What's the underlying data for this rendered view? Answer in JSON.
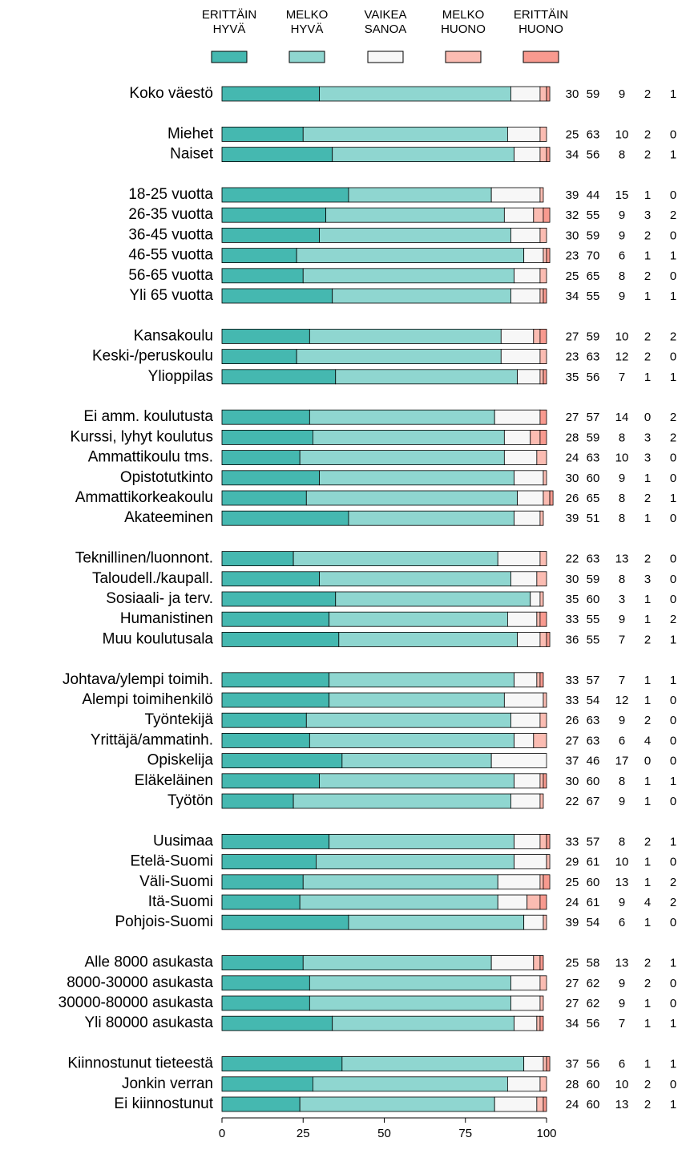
{
  "chart_data": {
    "type": "stacked-bar-horizontal",
    "categories": [
      "Koko väestö",
      null,
      "Miehet",
      "Naiset",
      null,
      "18-25 vuotta",
      "26-35 vuotta",
      "36-45 vuotta",
      "46-55 vuotta",
      "56-65 vuotta",
      "Yli 65 vuotta",
      null,
      "Kansakoulu",
      "Keski-/peruskoulu",
      "Ylioppilas",
      null,
      "Ei amm. koulutusta",
      "Kurssi, lyhyt koulutus",
      "Ammattikoulu tms.",
      "Opistotutkinto",
      "Ammattikorkeakoulu",
      "Akateeminen",
      null,
      "Teknillinen/luonnont.",
      "Taloudell./kaupall.",
      "Sosiaali- ja terv.",
      "Humanistinen",
      "Muu koulutusala",
      null,
      "Johtava/ylempi toimih.",
      "Alempi toimihenkilö",
      "Työntekijä",
      "Yrittäjä/ammatinh.",
      "Opiskelija",
      "Eläkeläinen",
      "Työtön",
      null,
      "Uusimaa",
      "Etelä-Suomi",
      "Väli-Suomi",
      "Itä-Suomi",
      "Pohjois-Suomi",
      null,
      "Alle 8000 asukasta",
      "8000-30000 asukasta",
      "30000-80000 asukasta",
      "Yli 80000 asukasta",
      null,
      "Kiinnostunut tieteestä",
      "Jonkin verran",
      "Ei kiinnostunut"
    ],
    "series": [
      {
        "name": "ERITTÄIN HYVÄ",
        "color": "#45b8b0",
        "values": [
          30,
          null,
          25,
          34,
          null,
          39,
          32,
          30,
          23,
          25,
          34,
          null,
          27,
          23,
          35,
          null,
          27,
          28,
          24,
          30,
          26,
          39,
          null,
          22,
          30,
          35,
          33,
          36,
          null,
          33,
          33,
          26,
          27,
          37,
          30,
          22,
          null,
          33,
          29,
          25,
          24,
          39,
          null,
          25,
          27,
          27,
          34,
          null,
          37,
          28,
          24
        ]
      },
      {
        "name": "MELKO HYVÄ",
        "color": "#8fd6d0",
        "values": [
          59,
          null,
          63,
          56,
          null,
          44,
          55,
          59,
          70,
          65,
          55,
          null,
          59,
          63,
          56,
          null,
          57,
          59,
          63,
          60,
          65,
          51,
          null,
          63,
          59,
          60,
          55,
          55,
          null,
          57,
          54,
          63,
          63,
          46,
          60,
          67,
          null,
          57,
          61,
          60,
          61,
          54,
          null,
          58,
          62,
          62,
          56,
          null,
          56,
          60,
          60
        ]
      },
      {
        "name": "VAIKEA SANOA",
        "color": "#f7f7f7",
        "values": [
          9,
          null,
          10,
          8,
          null,
          15,
          9,
          9,
          6,
          8,
          9,
          null,
          10,
          12,
          7,
          null,
          14,
          8,
          10,
          9,
          8,
          8,
          null,
          13,
          8,
          3,
          9,
          7,
          null,
          7,
          12,
          9,
          6,
          17,
          8,
          9,
          null,
          8,
          10,
          13,
          9,
          6,
          null,
          13,
          9,
          9,
          7,
          null,
          6,
          10,
          13
        ]
      },
      {
        "name": "MELKO HUONO",
        "color": "#fbbcb2",
        "values": [
          2,
          null,
          2,
          2,
          null,
          1,
          3,
          2,
          1,
          2,
          1,
          null,
          2,
          2,
          1,
          null,
          0,
          3,
          3,
          1,
          2,
          1,
          null,
          2,
          3,
          1,
          1,
          2,
          null,
          1,
          1,
          2,
          4,
          0,
          1,
          1,
          null,
          2,
          1,
          1,
          4,
          1,
          null,
          2,
          2,
          1,
          1,
          null,
          1,
          2,
          2
        ]
      },
      {
        "name": "ERITTÄIN HUONO",
        "color": "#f89a8f",
        "values": [
          1,
          null,
          0,
          1,
          null,
          0,
          2,
          0,
          1,
          0,
          1,
          null,
          2,
          0,
          1,
          null,
          2,
          2,
          0,
          0,
          1,
          0,
          null,
          0,
          0,
          0,
          2,
          1,
          null,
          1,
          0,
          0,
          0,
          0,
          1,
          0,
          null,
          1,
          0,
          2,
          2,
          0,
          null,
          1,
          0,
          0,
          1,
          null,
          1,
          0,
          1
        ]
      }
    ],
    "xlim": [
      0,
      100
    ],
    "xticks": [
      0,
      25,
      50,
      75,
      100
    ]
  }
}
